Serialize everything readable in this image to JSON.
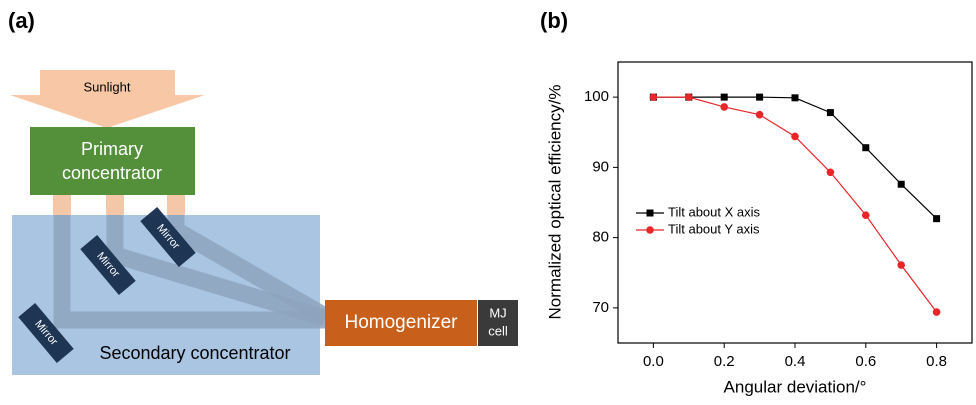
{
  "diagram": {
    "panel_label": "(a)",
    "sunlight": "Sunlight",
    "primary": [
      "Primary",
      "concentrator"
    ],
    "mirrors": [
      "Mirror",
      "Mirror",
      "Mirror"
    ],
    "secondary": "Secondary concentrator",
    "homogenizer": "Homogenizer",
    "cell": [
      "MJ",
      "cell"
    ]
  },
  "chart_data": {
    "type": "line",
    "panel_label": "(b)",
    "x_label": "Angular deviation/°",
    "y_label": "Normalized optical efficiency/%",
    "x": [
      0,
      0.1,
      0.2,
      0.3,
      0.4,
      0.5,
      0.6,
      0.7,
      0.8
    ],
    "series": [
      {
        "name": "Tilt about X axis",
        "color": "#000000",
        "marker": "square",
        "values": [
          100,
          100,
          100,
          100,
          99.9,
          97.8,
          92.8,
          87.6,
          82.7
        ]
      },
      {
        "name": "Tilt about Y axis",
        "color": "#e8262a",
        "marker": "circle",
        "values": [
          100,
          100,
          98.6,
          97.5,
          94.4,
          89.3,
          83.2,
          76.1,
          69.4
        ]
      }
    ],
    "xlim": [
      -0.1,
      0.9
    ],
    "xticks": [
      {
        "value": 0,
        "label": "0.0"
      },
      0.2,
      0.4,
      0.6,
      0.8
    ],
    "ylim": [
      65,
      105
    ],
    "yticks": [
      70,
      80,
      90,
      100
    ],
    "grid": false,
    "legend": "center-left"
  }
}
